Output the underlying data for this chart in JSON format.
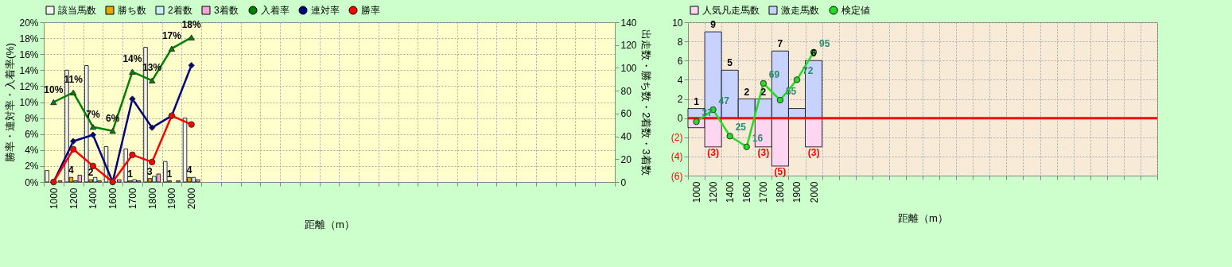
{
  "chart_data": [
    {
      "type": "bar",
      "xlabel": "距離（m）",
      "ylabel": "勝率・連対率・入着率(%)",
      "y2label": "出走数・勝ち数・2着数・3着数",
      "categories": [
        "1000",
        "1200",
        "1400",
        "1600",
        "1700",
        "1800",
        "1900",
        "2000",
        null,
        null,
        null,
        null,
        null,
        null,
        null,
        null,
        null,
        null,
        null,
        null,
        null,
        null,
        null,
        null,
        null,
        null,
        null,
        null,
        null
      ],
      "series": [
        {
          "name": "該当馬数",
          "axis": "y2",
          "color": "#f2f2f2",
          "values": [
            10,
            98,
            102,
            31,
            29,
            118,
            18,
            56,
            null,
            null,
            null,
            null,
            null,
            null,
            null,
            null,
            null,
            null,
            null,
            null,
            null,
            null,
            null,
            null,
            null,
            null,
            null,
            null,
            null
          ]
        },
        {
          "name": "勝ち数",
          "axis": "y2",
          "color": "#e6a800",
          "values": [
            0,
            4,
            2,
            0,
            1,
            3,
            1,
            4,
            null,
            null,
            null,
            null,
            null,
            null,
            null,
            null,
            null,
            null,
            null,
            null,
            null,
            null,
            null,
            null,
            null,
            null,
            null,
            null,
            null
          ],
          "value_labels": [
            null,
            "4",
            "2",
            null,
            "1",
            "3",
            "1",
            "4",
            null,
            null,
            null,
            null,
            null,
            null,
            null,
            null,
            null,
            null,
            null,
            null,
            null,
            null,
            null,
            null,
            null,
            null,
            null,
            null,
            null
          ]
        },
        {
          "name": "2着数",
          "axis": "y2",
          "color": "#c6f0f8",
          "values": [
            0,
            1,
            4,
            0,
            2,
            5,
            0,
            4,
            null,
            null,
            null,
            null,
            null,
            null,
            null,
            null,
            null,
            null,
            null,
            null,
            null,
            null,
            null,
            null,
            null,
            null,
            null,
            null,
            null
          ]
        },
        {
          "name": "3着数",
          "axis": "y2",
          "color": "#f4a6d8",
          "values": [
            1,
            6,
            1,
            2,
            1,
            7,
            1,
            2,
            null,
            null,
            null,
            null,
            null,
            null,
            null,
            null,
            null,
            null,
            null,
            null,
            null,
            null,
            null,
            null,
            null,
            null,
            null,
            null,
            null
          ]
        },
        {
          "name": "入着率",
          "type": "line",
          "axis": "y",
          "color": "#008000",
          "marker": "triangle",
          "values": [
            10.0,
            11.2,
            6.9,
            6.4,
            13.8,
            12.7,
            16.7,
            18.1,
            null,
            null,
            null,
            null,
            null,
            null,
            null,
            null,
            null,
            null,
            null,
            null,
            null,
            null,
            null,
            null,
            null,
            null,
            null,
            null,
            null
          ],
          "value_labels": [
            "10%",
            "11%",
            "7%",
            "6%",
            "14%",
            "13%",
            "17%",
            "18%",
            null,
            null,
            null,
            null,
            null,
            null,
            null,
            null,
            null,
            null,
            null,
            null,
            null,
            null,
            null,
            null,
            null,
            null,
            null,
            null,
            null
          ]
        },
        {
          "name": "連対率",
          "type": "line",
          "axis": "y",
          "color": "#000080",
          "marker": "diamond",
          "values": [
            0,
            5.1,
            5.9,
            0,
            10.4,
            6.8,
            8.3,
            14.6,
            null,
            null,
            null,
            null,
            null,
            null,
            null,
            null,
            null,
            null,
            null,
            null,
            null,
            null,
            null,
            null,
            null,
            null,
            null,
            null,
            null
          ]
        },
        {
          "name": "勝率",
          "type": "line",
          "axis": "y",
          "color": "#ff0000",
          "marker": "circle",
          "values": [
            0,
            4.1,
            2.0,
            0,
            3.4,
            2.5,
            8.3,
            7.2,
            null,
            null,
            null,
            null,
            null,
            null,
            null,
            null,
            null,
            null,
            null,
            null,
            null,
            null,
            null,
            null,
            null,
            null,
            null,
            null,
            null
          ]
        }
      ],
      "ylim": [
        0,
        20
      ],
      "yticks": [
        {
          "value": 0,
          "label": "0%"
        },
        {
          "value": 2,
          "label": "2%"
        },
        {
          "value": 4,
          "label": "4%"
        },
        {
          "value": 6,
          "label": "6%"
        },
        {
          "value": 8,
          "label": "8%"
        },
        {
          "value": 10,
          "label": "10%"
        },
        {
          "value": 12,
          "label": "12%"
        },
        {
          "value": 14,
          "label": "14%"
        },
        {
          "value": 16,
          "label": "16%"
        },
        {
          "value": 18,
          "label": "18%"
        },
        {
          "value": 20,
          "label": "20%"
        }
      ],
      "y2lim": [
        0,
        140
      ],
      "y2ticks": [
        0,
        20,
        40,
        60,
        80,
        100,
        120,
        140
      ],
      "grid": true,
      "legend": "top"
    },
    {
      "type": "bar",
      "xlabel": "距離（m）",
      "stacked": true,
      "categories": [
        "1000",
        "1200",
        "1400",
        "1600",
        "1700",
        "1800",
        "1900",
        "2000",
        null,
        null,
        null,
        null,
        null,
        null,
        null,
        null,
        null,
        null,
        null,
        null,
        null,
        null,
        null,
        null,
        null,
        null,
        null,
        null
      ],
      "series": [
        {
          "name": "人気凡走馬数",
          "color": "#ffd6f2",
          "values": [
            -1,
            -3,
            0,
            0,
            -3,
            -5,
            0,
            -3,
            null,
            null,
            null,
            null,
            null,
            null,
            null,
            null,
            null,
            null,
            null,
            null,
            null,
            null,
            null,
            null,
            null,
            null,
            null,
            null
          ],
          "value_labels": [
            null,
            "(3)",
            null,
            null,
            "(3)",
            "(5)",
            null,
            "(3)",
            null,
            null,
            null,
            null,
            null,
            null,
            null,
            null,
            null,
            null,
            null,
            null,
            null,
            null,
            null,
            null,
            null,
            null,
            null,
            null
          ]
        },
        {
          "name": "激走馬数",
          "color": "#c8d2ff",
          "values": [
            1,
            9,
            5,
            2,
            2,
            7,
            1,
            6,
            null,
            null,
            null,
            null,
            null,
            null,
            null,
            null,
            null,
            null,
            null,
            null,
            null,
            null,
            null,
            null,
            null,
            null,
            null,
            null
          ],
          "value_labels": [
            "1",
            "9",
            "5",
            "2",
            "2",
            "7",
            null,
            "6",
            null,
            null,
            null,
            null,
            null,
            null,
            null,
            null,
            null,
            null,
            null,
            null,
            null,
            null,
            null,
            null,
            null,
            null,
            null,
            null
          ]
        },
        {
          "name": "検定値",
          "type": "line",
          "axis": "y2",
          "color": "#22dd22",
          "marker": "circle",
          "values": [
            37,
            47,
            25,
            16,
            69,
            55,
            72,
            95,
            null,
            null,
            null,
            null,
            null,
            null,
            null,
            null,
            null,
            null,
            null,
            null,
            null,
            null,
            null,
            null,
            null,
            null,
            null,
            null
          ],
          "value_labels": [
            "37",
            "47",
            "25",
            "16",
            "69",
            "55",
            "72",
            "95",
            null,
            null,
            null,
            null,
            null,
            null,
            null,
            null,
            null,
            null,
            null,
            null,
            null,
            null,
            null,
            null,
            null,
            null,
            null,
            null
          ]
        }
      ],
      "ylim": [
        -6,
        10
      ],
      "yticks": [
        10,
        8,
        6,
        4,
        2,
        0,
        {
          "value": -2,
          "label": "(2)"
        },
        {
          "value": -4,
          "label": "(4)"
        },
        {
          "value": -6,
          "label": "(6)"
        }
      ],
      "y2lim": [
        -8,
        120
      ],
      "ref_lines": [
        {
          "axis": "y",
          "value": 0,
          "color": "#ff0000"
        }
      ],
      "grid": true,
      "legend": "top"
    }
  ]
}
